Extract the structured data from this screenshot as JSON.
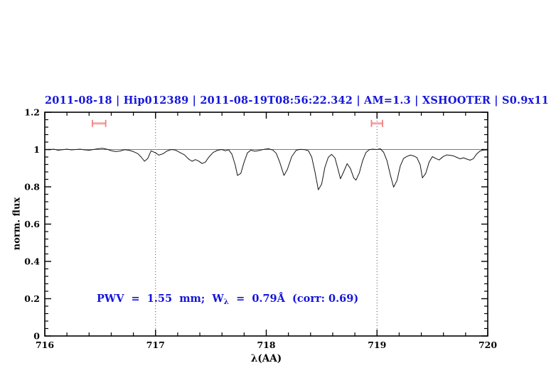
{
  "title": {
    "text": "2011-08-18 | Hip012389 | 2011-08-19T08:56:22.342 | AM=1.3 | XSHOOTER | S0.9x11"
  },
  "annotation": {
    "pre": "PWV  =  1.55  mm;  W",
    "sub": "λ",
    "post": "  =  0.79Å  (corr: 0.69)"
  },
  "colors": {
    "accent_blue": "#1515dd",
    "continuum_red": "#e05050",
    "marker_salmon_bar": "#f5a5a5",
    "marker_salmon_cap": "#ee8282",
    "spectrum_black": "#151515",
    "guide_gray": "#4a4a4a",
    "frame_black": "#000000"
  },
  "chart_data": {
    "type": "line",
    "title": "2011-08-18 | Hip012389 | 2011-08-19T08:56:22.342 | AM=1.3 | XSHOOTER | S0.9x11",
    "xlabel": "λ(AA)",
    "ylabel": "norm. flux",
    "xlim": [
      716,
      720
    ],
    "ylim": [
      0,
      1.2
    ],
    "grid": "off",
    "legend": "none",
    "x_ticks": {
      "values": [
        716,
        717,
        718,
        719,
        720
      ],
      "labels": [
        "716",
        "717",
        "718",
        "719",
        "720"
      ],
      "minor_step": 0.2
    },
    "y_ticks": {
      "values": [
        0,
        0.2,
        0.4,
        0.6,
        0.8,
        1.0,
        1.2
      ],
      "labels": [
        "0",
        "0.2",
        "0.4",
        "0.6",
        "0.8",
        "1",
        "1.2"
      ],
      "minor_step": 0.04
    },
    "guides_x_dotted": [
      717,
      719
    ],
    "continuum_level": 1.0,
    "equiv_width_markers": [
      {
        "x1": 716.43,
        "x2": 716.55,
        "y": 1.14
      },
      {
        "x1": 718.95,
        "x2": 719.05,
        "y": 1.14
      }
    ],
    "annotation_text": "PWV = 1.55 mm; W_λ = 0.79Å (corr: 0.69)",
    "series": [
      {
        "name": "spectrum",
        "points": [
          [
            716.0,
            1.0
          ],
          [
            716.04,
            0.999
          ],
          [
            716.08,
            1.002
          ],
          [
            716.12,
            0.996
          ],
          [
            716.16,
            0.999
          ],
          [
            716.2,
            1.002
          ],
          [
            716.24,
            0.998
          ],
          [
            716.28,
            1.0
          ],
          [
            716.32,
            1.002
          ],
          [
            716.36,
            0.998
          ],
          [
            716.4,
            0.996
          ],
          [
            716.44,
            1.0
          ],
          [
            716.48,
            1.004
          ],
          [
            716.52,
            1.007
          ],
          [
            716.56,
            1.002
          ],
          [
            716.6,
            0.994
          ],
          [
            716.64,
            0.989
          ],
          [
            716.68,
            0.992
          ],
          [
            716.72,
            0.999
          ],
          [
            716.76,
            0.996
          ],
          [
            716.8,
            0.989
          ],
          [
            716.84,
            0.978
          ],
          [
            716.87,
            0.96
          ],
          [
            716.9,
            0.937
          ],
          [
            716.93,
            0.952
          ],
          [
            716.96,
            0.993
          ],
          [
            717.0,
            0.982
          ],
          [
            717.03,
            0.97
          ],
          [
            717.07,
            0.978
          ],
          [
            717.1,
            0.991
          ],
          [
            717.14,
            1.0
          ],
          [
            717.18,
            0.997
          ],
          [
            717.22,
            0.984
          ],
          [
            717.26,
            0.972
          ],
          [
            717.3,
            0.948
          ],
          [
            717.33,
            0.937
          ],
          [
            717.36,
            0.946
          ],
          [
            717.39,
            0.938
          ],
          [
            717.42,
            0.925
          ],
          [
            717.45,
            0.932
          ],
          [
            717.48,
            0.958
          ],
          [
            717.52,
            0.984
          ],
          [
            717.56,
            0.996
          ],
          [
            717.6,
            1.0
          ],
          [
            717.63,
            0.993
          ],
          [
            717.66,
            0.999
          ],
          [
            717.69,
            0.975
          ],
          [
            717.72,
            0.916
          ],
          [
            717.74,
            0.861
          ],
          [
            717.77,
            0.872
          ],
          [
            717.8,
            0.932
          ],
          [
            717.83,
            0.982
          ],
          [
            717.86,
            0.996
          ],
          [
            717.9,
            0.991
          ],
          [
            717.94,
            0.995
          ],
          [
            717.98,
            1.001
          ],
          [
            718.02,
            1.004
          ],
          [
            718.06,
            0.997
          ],
          [
            718.09,
            0.98
          ],
          [
            718.12,
            0.935
          ],
          [
            718.16,
            0.861
          ],
          [
            718.19,
            0.893
          ],
          [
            718.23,
            0.962
          ],
          [
            718.27,
            0.996
          ],
          [
            718.31,
            1.001
          ],
          [
            718.35,
            0.999
          ],
          [
            718.38,
            0.994
          ],
          [
            718.41,
            0.96
          ],
          [
            718.44,
            0.88
          ],
          [
            718.47,
            0.784
          ],
          [
            718.5,
            0.815
          ],
          [
            718.53,
            0.905
          ],
          [
            718.56,
            0.958
          ],
          [
            718.59,
            0.974
          ],
          [
            718.62,
            0.955
          ],
          [
            718.65,
            0.89
          ],
          [
            718.67,
            0.843
          ],
          [
            718.7,
            0.882
          ],
          [
            718.73,
            0.924
          ],
          [
            718.76,
            0.898
          ],
          [
            718.79,
            0.848
          ],
          [
            718.81,
            0.836
          ],
          [
            718.84,
            0.874
          ],
          [
            718.87,
            0.94
          ],
          [
            718.9,
            0.984
          ],
          [
            718.93,
            0.999
          ],
          [
            718.96,
            1.002
          ],
          [
            719.0,
            1.0
          ],
          [
            719.03,
            1.004
          ],
          [
            719.06,
            0.985
          ],
          [
            719.09,
            0.94
          ],
          [
            719.12,
            0.865
          ],
          [
            719.15,
            0.798
          ],
          [
            719.18,
            0.833
          ],
          [
            719.21,
            0.912
          ],
          [
            719.24,
            0.952
          ],
          [
            719.27,
            0.963
          ],
          [
            719.3,
            0.97
          ],
          [
            719.33,
            0.966
          ],
          [
            719.36,
            0.957
          ],
          [
            719.39,
            0.918
          ],
          [
            719.41,
            0.848
          ],
          [
            719.44,
            0.872
          ],
          [
            719.47,
            0.932
          ],
          [
            719.5,
            0.962
          ],
          [
            719.53,
            0.952
          ],
          [
            719.56,
            0.944
          ],
          [
            719.6,
            0.963
          ],
          [
            719.63,
            0.971
          ],
          [
            719.66,
            0.969
          ],
          [
            719.69,
            0.966
          ],
          [
            719.72,
            0.958
          ],
          [
            719.75,
            0.95
          ],
          [
            719.78,
            0.956
          ],
          [
            719.81,
            0.949
          ],
          [
            719.84,
            0.943
          ],
          [
            719.87,
            0.951
          ],
          [
            719.9,
            0.976
          ],
          [
            719.93,
            0.992
          ],
          [
            719.96,
            0.997
          ],
          [
            720.0,
            0.998
          ]
        ]
      }
    ]
  }
}
